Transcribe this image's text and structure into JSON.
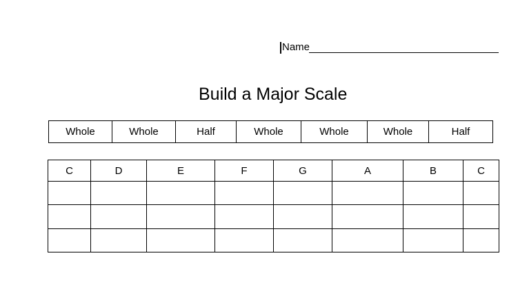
{
  "page": {
    "name_label": "Name",
    "title": "Build a Major Scale"
  },
  "interval_row": {
    "cells": [
      "Whole",
      "Whole",
      "Half",
      "Whole",
      "Whole",
      "Whole",
      "Half"
    ]
  },
  "note_table": {
    "columns": [
      "C",
      "D",
      "E",
      "F",
      "G",
      "A",
      "B",
      "C"
    ],
    "empty_row_count": 3
  },
  "colors": {
    "text": "#000000",
    "border": "#000000",
    "background": "#ffffff"
  }
}
